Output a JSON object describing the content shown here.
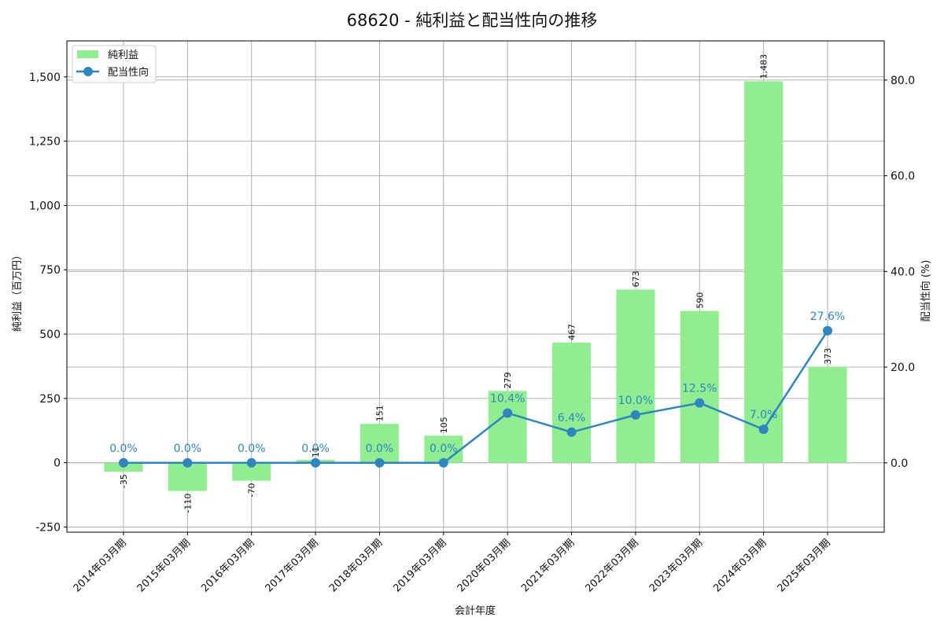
{
  "chart_data": {
    "type": "bar+line",
    "title": "68620 - 純利益と配当性向の推移",
    "xlabel": "会計年度",
    "ylabel_left": "純利益（百万円）",
    "ylabel_right": "配当性向 (%)",
    "categories": [
      "2014年03月期",
      "2015年03月期",
      "2016年03月期",
      "2017年03月期",
      "2018年03月期",
      "2019年03月期",
      "2020年03月期",
      "2021年03月期",
      "2022年03月期",
      "2023年03月期",
      "2024年03月期",
      "2025年03月期"
    ],
    "series": [
      {
        "name": "純利益",
        "type": "bar",
        "axis": "left",
        "color": "#90ee90",
        "values": [
          -35,
          -110,
          -70,
          11,
          151,
          105,
          279,
          467,
          673,
          590,
          1483,
          373
        ],
        "labels": [
          "-35",
          "-110",
          "-70",
          "11",
          "151",
          "105",
          "279",
          "467",
          "673",
          "590",
          "1,483",
          "373"
        ]
      },
      {
        "name": "配当性向",
        "type": "line",
        "axis": "right",
        "color": "#2e86c1",
        "values": [
          0.0,
          0.0,
          0.0,
          0.0,
          0.0,
          0.0,
          10.4,
          6.4,
          10.0,
          12.5,
          7.0,
          27.6
        ],
        "labels": [
          "0.0%",
          "0.0%",
          "0.0%",
          "0.0%",
          "0.0%",
          "0.0%",
          "10.4%",
          "6.4%",
          "10.0%",
          "12.5%",
          "7.0%",
          "27.6%"
        ]
      }
    ],
    "ylim_left": [
      -270,
      1640
    ],
    "ylim_right": [
      -14.5,
      88.2
    ],
    "yticks_left": [
      -250,
      0,
      250,
      500,
      750,
      1000,
      1250,
      1500
    ],
    "yticks_left_labels": [
      "-250",
      "0",
      "250",
      "500",
      "750",
      "1,000",
      "1,250",
      "1,500"
    ],
    "yticks_right": [
      0,
      20,
      40,
      60,
      80
    ],
    "yticks_right_labels": [
      "0.0",
      "20.0",
      "40.0",
      "60.0",
      "80.0"
    ],
    "grid": true,
    "legend_position": "upper left"
  }
}
